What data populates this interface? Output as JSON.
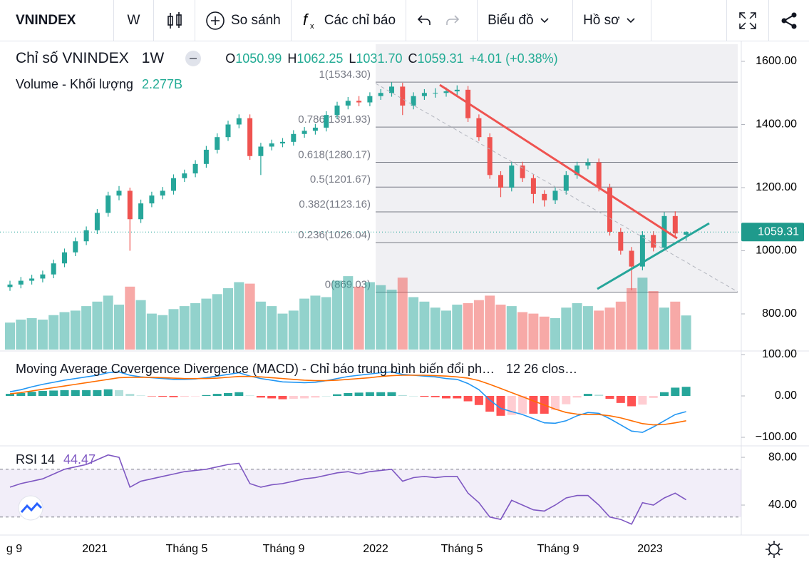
{
  "toolbar": {
    "symbol": "VNINDEX",
    "interval": "W",
    "compare": "So sánh",
    "indicators": "Các chỉ báo",
    "chart_type": "Biểu đồ",
    "profile": "Hồ sơ"
  },
  "legend": {
    "title": "Chỉ số VNINDEX",
    "interval": "1W",
    "open_label": "O",
    "open": 1050.99,
    "high_label": "H",
    "high": 1062.25,
    "low_label": "L",
    "low": {
      "value": 1031.7,
      "label": "1031.70"
    },
    "close_label": "C",
    "close": 1059.31,
    "change": "+4.01 (+0.38%)",
    "volume_label": "Volume - Khối lượng",
    "volume": "2.277B"
  },
  "price_chart": {
    "type": "candlestick",
    "ylim": [
      682.5,
      1663.3
    ],
    "yticks": [
      {
        "value": 1600,
        "label": "1600.00"
      },
      {
        "value": 1400,
        "label": "1400.00"
      },
      {
        "value": 1200,
        "label": "1200.00"
      },
      {
        "value": 1000,
        "label": "1000.00"
      },
      {
        "value": 800,
        "label": "800.00"
      }
    ],
    "up_color": "#26a69a",
    "down_color": "#ef5350",
    "candles": [
      [
        885,
        905,
        873,
        893
      ],
      [
        893,
        917,
        881,
        905
      ],
      [
        905,
        924,
        893,
        912
      ],
      [
        912,
        937,
        900,
        925
      ],
      [
        925,
        972,
        913,
        960
      ],
      [
        960,
        1007,
        948,
        995
      ],
      [
        995,
        1042,
        983,
        1030
      ],
      [
        1030,
        1077,
        1018,
        1065
      ],
      [
        1065,
        1132,
        1053,
        1120
      ],
      [
        1120,
        1187,
        1108,
        1175
      ],
      [
        1175,
        1205,
        1160,
        1190
      ],
      [
        1190,
        1200,
        1000,
        1100
      ],
      [
        1100,
        1162,
        1088,
        1150
      ],
      [
        1150,
        1187,
        1138,
        1175
      ],
      [
        1175,
        1202,
        1163,
        1190
      ],
      [
        1190,
        1242,
        1178,
        1230
      ],
      [
        1230,
        1257,
        1218,
        1245
      ],
      [
        1245,
        1287,
        1233,
        1275
      ],
      [
        1275,
        1332,
        1263,
        1320
      ],
      [
        1320,
        1372,
        1308,
        1360
      ],
      [
        1360,
        1412,
        1348,
        1400
      ],
      [
        1400,
        1432,
        1388,
        1420
      ],
      [
        1420,
        1432,
        1288,
        1300
      ],
      [
        1300,
        1342,
        1240,
        1330
      ],
      [
        1330,
        1352,
        1318,
        1340
      ],
      [
        1340,
        1357,
        1328,
        1345
      ],
      [
        1345,
        1382,
        1333,
        1370
      ],
      [
        1370,
        1392,
        1358,
        1380
      ],
      [
        1380,
        1402,
        1368,
        1390
      ],
      [
        1390,
        1442,
        1378,
        1430
      ],
      [
        1430,
        1472,
        1418,
        1460
      ],
      [
        1460,
        1487,
        1448,
        1475
      ],
      [
        1475,
        1490,
        1458,
        1470
      ],
      [
        1470,
        1502,
        1458,
        1490
      ],
      [
        1490,
        1512,
        1478,
        1500
      ],
      [
        1500,
        1534,
        1488,
        1520
      ],
      [
        1520,
        1532,
        1430,
        1460
      ],
      [
        1460,
        1502,
        1448,
        1490
      ],
      [
        1490,
        1512,
        1478,
        1500
      ],
      [
        1500,
        1515,
        1485,
        1500
      ],
      [
        1500,
        1517,
        1488,
        1505
      ],
      [
        1505,
        1524,
        1493,
        1510
      ],
      [
        1510,
        1522,
        1408,
        1420
      ],
      [
        1420,
        1432,
        1348,
        1360
      ],
      [
        1360,
        1372,
        1228,
        1240
      ],
      [
        1240,
        1252,
        1170,
        1200
      ],
      [
        1200,
        1282,
        1188,
        1270
      ],
      [
        1270,
        1282,
        1218,
        1230
      ],
      [
        1230,
        1242,
        1150,
        1180
      ],
      [
        1180,
        1192,
        1140,
        1160
      ],
      [
        1160,
        1202,
        1148,
        1190
      ],
      [
        1190,
        1252,
        1178,
        1240
      ],
      [
        1240,
        1282,
        1228,
        1270
      ],
      [
        1270,
        1292,
        1258,
        1280
      ],
      [
        1280,
        1292,
        1188,
        1200
      ],
      [
        1200,
        1212,
        1048,
        1060
      ],
      [
        1060,
        1072,
        988,
        1000
      ],
      [
        1000,
        1012,
        875,
        950
      ],
      [
        950,
        1062,
        938,
        1050
      ],
      [
        1050,
        1062,
        998,
        1010
      ],
      [
        1010,
        1122,
        1000,
        1110
      ],
      [
        1110,
        1125,
        1043,
        1055
      ],
      [
        1050.99,
        1062.25,
        1031.7,
        1059.31
      ]
    ],
    "volume": [
      1.8,
      2.0,
      2.1,
      2.0,
      2.3,
      2.5,
      2.6,
      2.9,
      3.2,
      3.6,
      3.0,
      4.2,
      3.3,
      2.4,
      2.3,
      2.7,
      2.9,
      3.1,
      3.4,
      3.7,
      4.1,
      4.5,
      4.4,
      3.2,
      2.9,
      2.4,
      2.6,
      3.4,
      3.6,
      3.5,
      4.6,
      4.9,
      4.2,
      4.5,
      4.3,
      4.0,
      4.8,
      3.5,
      3.2,
      2.8,
      2.6,
      3.0,
      3.1,
      3.3,
      3.6,
      3.0,
      2.9,
      2.5,
      2.4,
      2.2,
      2.1,
      2.8,
      3.1,
      2.9,
      2.6,
      2.8,
      3.2,
      4.1,
      4.8,
      3.9,
      2.8,
      3.2,
      2.277
    ],
    "last_price": {
      "value": 1059.31,
      "label": "1059.31"
    },
    "fib_levels": [
      {
        "value": 1534.3,
        "label": "1(1534.30)"
      },
      {
        "value": 1391.93,
        "label": "0.786(1391.93)"
      },
      {
        "value": 1280.17,
        "label": "0.618(1280.17)"
      },
      {
        "value": 1201.67,
        "label": "0.5(1201.67)"
      },
      {
        "value": 1123.16,
        "label": "0.382(1123.16)"
      },
      {
        "value": 1026.04,
        "label": "0.236(1026.04)"
      },
      {
        "value": 869.03,
        "label": "0(869.03)"
      }
    ]
  },
  "macd": {
    "title": "Moving Average Covergence Divergence (MACD) - Chỉ báo trung bình biến đổi ph…",
    "params": "12 26 clos…",
    "ylim": [
      -120.7,
      108.6
    ],
    "yticks": [
      {
        "value": 100,
        "label": "100.00"
      },
      {
        "value": 0,
        "label": "0.00"
      },
      {
        "value": -100,
        "label": "−100.00"
      }
    ],
    "macd_color": "#2196f3",
    "signal_color": "#ff6d00",
    "macd": [
      10,
      15,
      22,
      28,
      33,
      38,
      42,
      46,
      50,
      56,
      58,
      50,
      46,
      44,
      42,
      40,
      40,
      41,
      44,
      48,
      52,
      56,
      48,
      42,
      38,
      34,
      33,
      32,
      33,
      37,
      42,
      47,
      50,
      53,
      56,
      58,
      52,
      50,
      48,
      46,
      42,
      40,
      30,
      15,
      -10,
      -30,
      -38,
      -45,
      -55,
      -65,
      -66,
      -60,
      -48,
      -40,
      -42,
      -55,
      -70,
      -85,
      -88,
      -75,
      -60,
      -45,
      -38
    ],
    "signal": [
      5,
      8,
      12,
      16,
      20,
      24,
      28,
      32,
      36,
      40,
      44,
      45,
      45,
      45,
      44,
      43,
      42,
      42,
      42,
      43,
      45,
      47,
      47,
      46,
      44,
      42,
      40,
      38,
      37,
      37,
      38,
      40,
      42,
      44,
      47,
      49,
      50,
      50,
      50,
      49,
      48,
      46,
      43,
      37,
      28,
      18,
      8,
      -2,
      -12,
      -22,
      -32,
      -40,
      -44,
      -45,
      -45,
      -48,
      -53,
      -60,
      -67,
      -70,
      -69,
      -65,
      -60
    ],
    "histogram": [
      5,
      7,
      10,
      12,
      13,
      14,
      14,
      14,
      14,
      16,
      14,
      5,
      1,
      -1,
      -2,
      -3,
      -2,
      -1,
      2,
      5,
      7,
      9,
      1,
      -4,
      -6,
      -8,
      -7,
      -6,
      -4,
      0,
      4,
      7,
      8,
      9,
      9,
      9,
      2,
      0,
      -2,
      -3,
      -6,
      -6,
      -13,
      -22,
      -38,
      -48,
      -46,
      -43,
      -43,
      -43,
      -34,
      -20,
      -4,
      5,
      3,
      -7,
      -17,
      -25,
      -21,
      -5,
      9,
      20,
      22
    ]
  },
  "rsi": {
    "title": "RSI 14",
    "value": 44.47,
    "ylim": [
      14.9,
      89.6
    ],
    "yticks": [
      {
        "value": 80,
        "label": "80.00"
      },
      {
        "value": 40,
        "label": "40.00"
      }
    ],
    "band": [
      30,
      70
    ],
    "color": "#7e57c2",
    "values": [
      55,
      58,
      60,
      62,
      66,
      70,
      72,
      74,
      78,
      82,
      80,
      55,
      60,
      62,
      64,
      66,
      68,
      69,
      70,
      72,
      74,
      75,
      58,
      55,
      57,
      58,
      60,
      62,
      63,
      65,
      67,
      68,
      66,
      68,
      69,
      70,
      60,
      63,
      64,
      63,
      64,
      64,
      50,
      42,
      30,
      28,
      44,
      40,
      36,
      35,
      40,
      46,
      48,
      48,
      40,
      30,
      28,
      24,
      42,
      40,
      46,
      50,
      44.47
    ]
  },
  "time_axis": {
    "labels": [
      "g 9",
      "2021",
      "Tháng 5",
      "Tháng 9",
      "2022",
      "Tháng 5",
      "Tháng 9",
      "2023"
    ]
  }
}
